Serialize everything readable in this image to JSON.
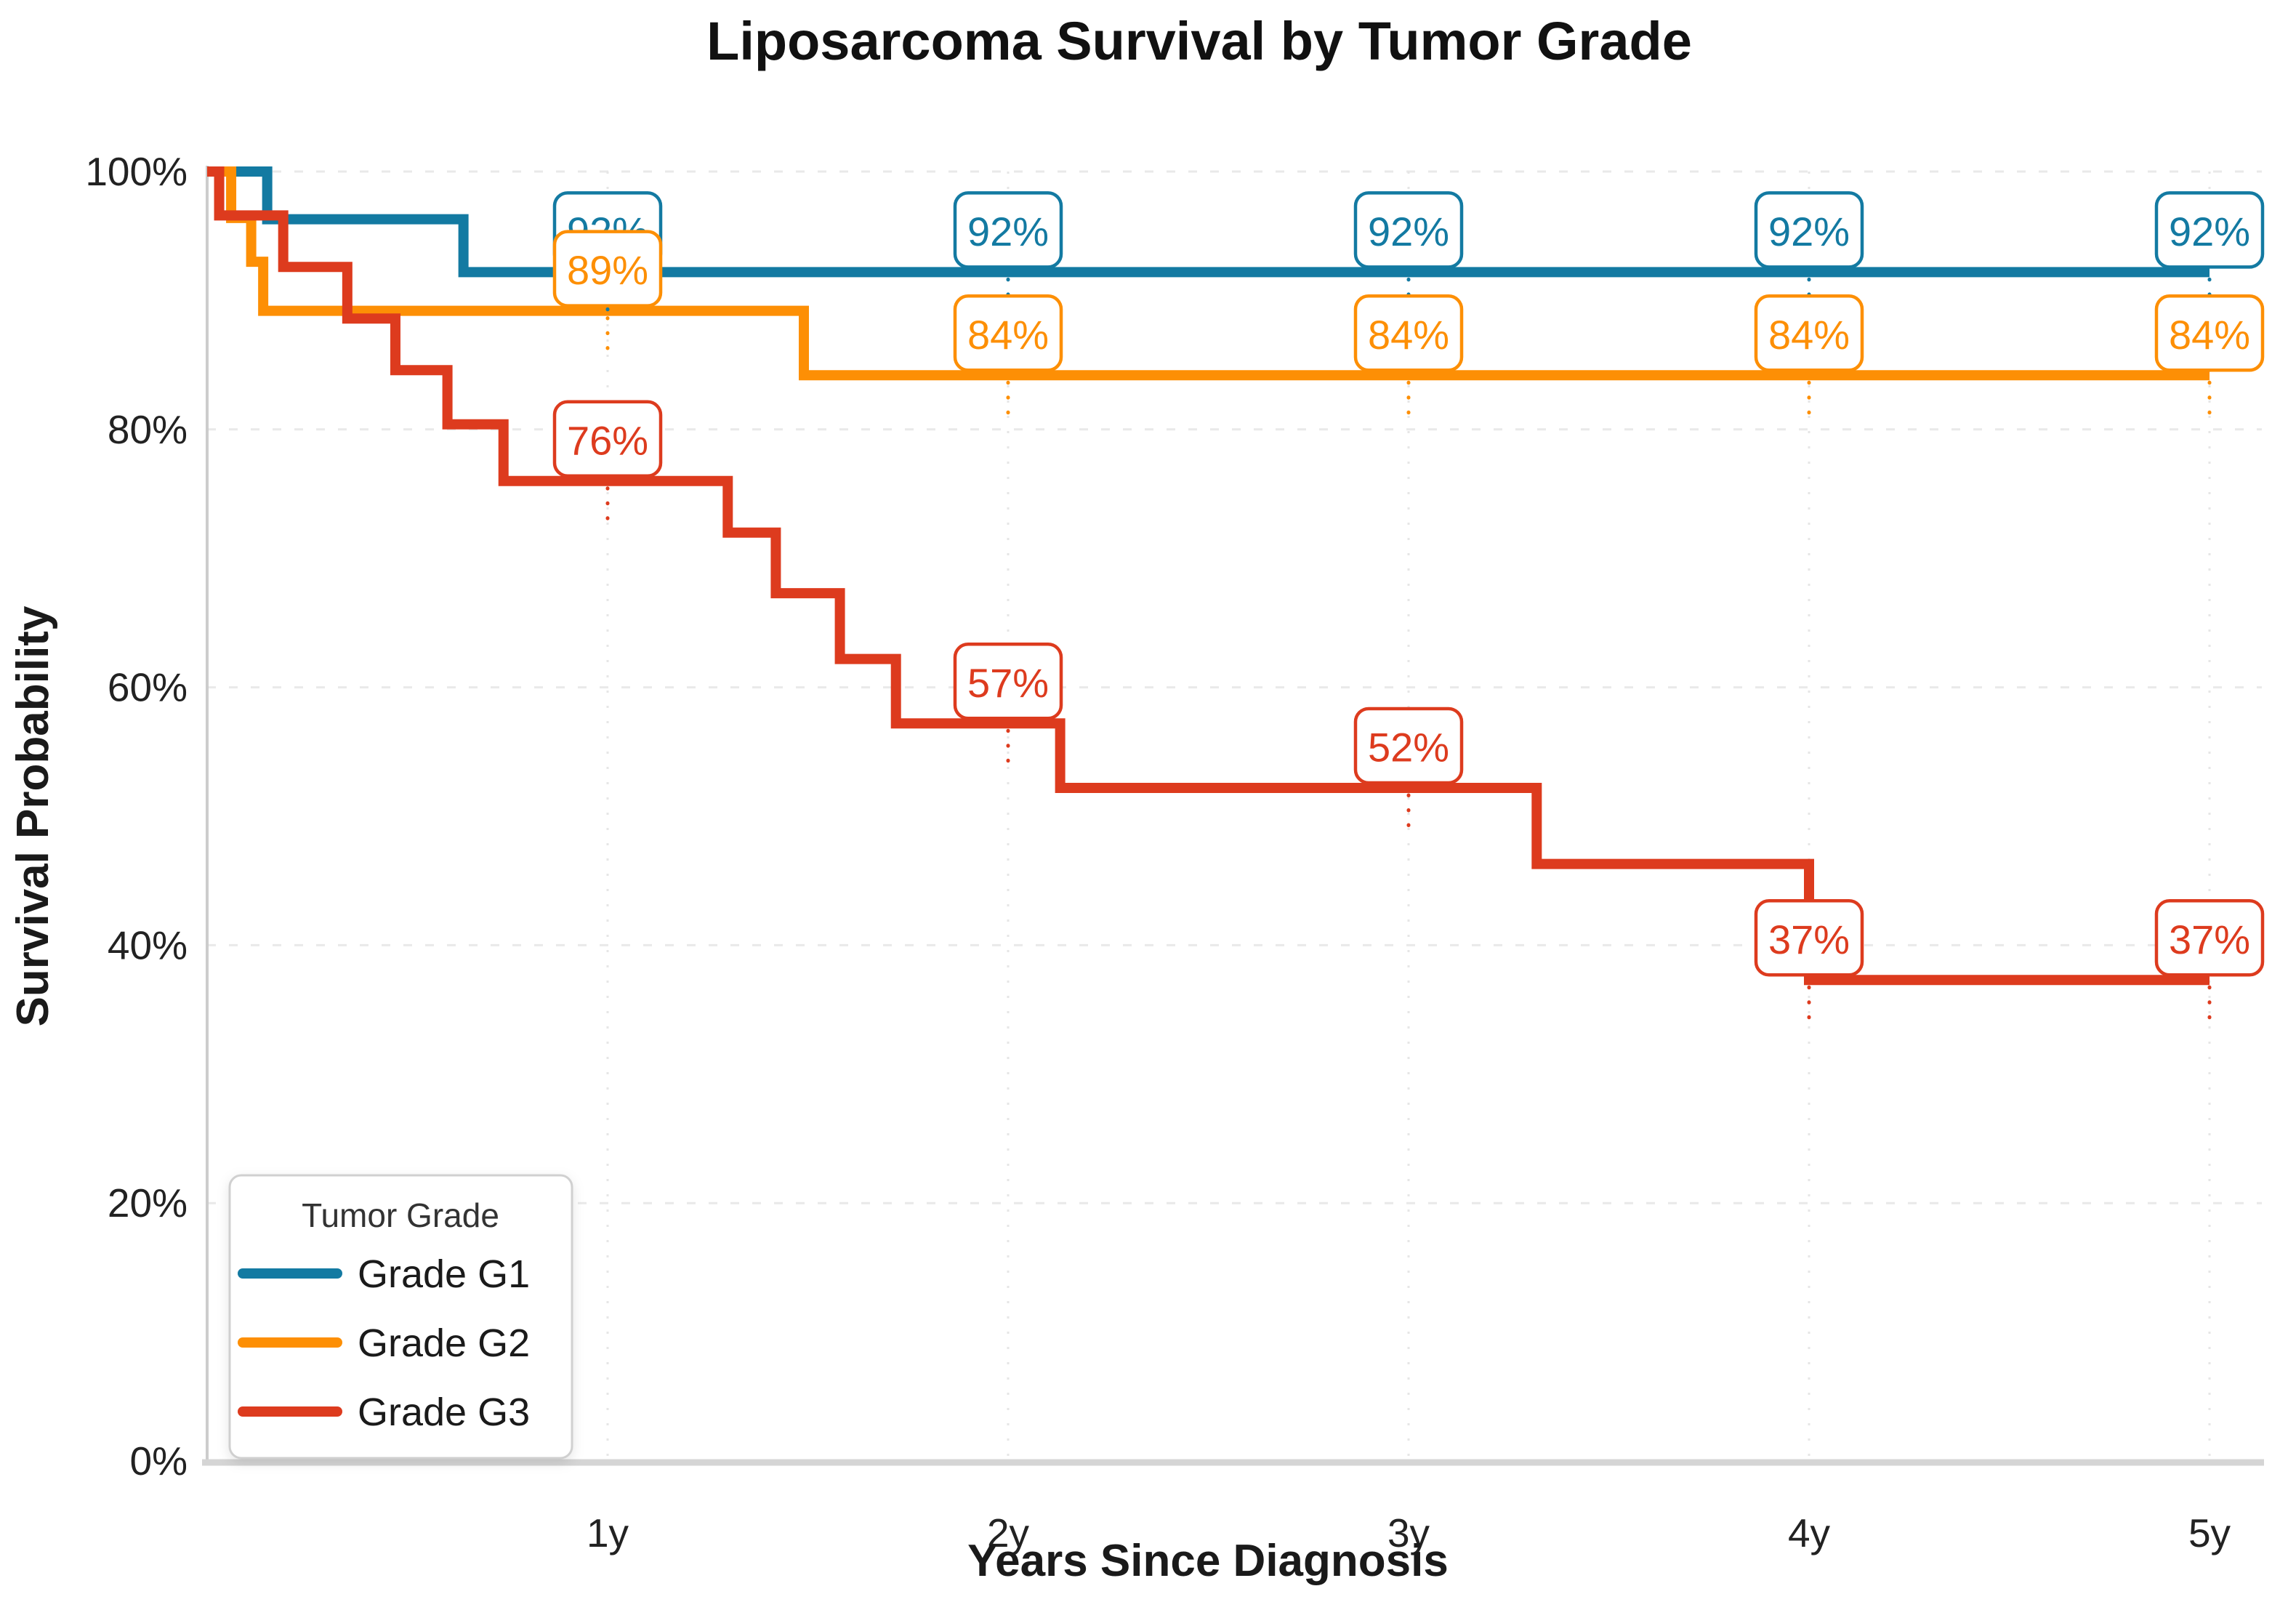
{
  "colors": {
    "background": "#ffffff",
    "grid_horizontal": "#e9e9e9",
    "grid_vertical": "#e6e6e6",
    "axis_line": "#cccccc",
    "tick_text": "#222222",
    "title_text": "#111111",
    "annotation_fill": "#ffffff",
    "legend_border": "#d0d0d0"
  },
  "chart_data": {
    "type": "line",
    "variant": "kaplan_meier_step",
    "title": "Liposarcoma Survival by Tumor Grade",
    "xlabel": "Years Since Diagnosis",
    "ylabel": "Survival Probability",
    "xlim_years": [
      0,
      5
    ],
    "ylim_percent": [
      0,
      100
    ],
    "grid": true,
    "x_ticks": [
      {
        "t": 1,
        "label": "1y"
      },
      {
        "t": 2,
        "label": "2y"
      },
      {
        "t": 3,
        "label": "3y"
      },
      {
        "t": 4,
        "label": "4y"
      },
      {
        "t": 5,
        "label": "5y"
      }
    ],
    "y_ticks": [
      {
        "p": 0,
        "label": "0%"
      },
      {
        "p": 20,
        "label": "20%"
      },
      {
        "p": 40,
        "label": "40%"
      },
      {
        "p": 60,
        "label": "60%"
      },
      {
        "p": 80,
        "label": "80%"
      },
      {
        "p": 100,
        "label": "100%"
      }
    ],
    "legend": {
      "title": "Tumor Grade",
      "position": "lower-left"
    },
    "series": [
      {
        "name": "Grade G1",
        "color": "#137aa2",
        "steps_time_percent": [
          [
            0,
            100
          ],
          [
            0.15,
            96.3
          ],
          [
            0.64,
            92.2
          ]
        ],
        "end_time": 5,
        "annotations": [
          {
            "t": 1,
            "p": 92.2,
            "label": "92%"
          },
          {
            "t": 2,
            "p": 92.2,
            "label": "92%"
          },
          {
            "t": 3,
            "p": 92.2,
            "label": "92%"
          },
          {
            "t": 4,
            "p": 92.2,
            "label": "92%"
          },
          {
            "t": 5,
            "p": 92.2,
            "label": "92%"
          }
        ]
      },
      {
        "name": "Grade G2",
        "color": "#fd8f05",
        "steps_time_percent": [
          [
            0,
            100
          ],
          [
            0.06,
            96.4
          ],
          [
            0.11,
            93.0
          ],
          [
            0.14,
            89.2
          ],
          [
            1.49,
            84.2
          ]
        ],
        "end_time": 5,
        "annotations": [
          {
            "t": 1,
            "p": 89.2,
            "label": "89%"
          },
          {
            "t": 2,
            "p": 84.2,
            "label": "84%"
          },
          {
            "t": 3,
            "p": 84.2,
            "label": "84%"
          },
          {
            "t": 4,
            "p": 84.2,
            "label": "84%"
          },
          {
            "t": 5,
            "p": 84.2,
            "label": "84%"
          }
        ]
      },
      {
        "name": "Grade G3",
        "color": "#dd3b1e",
        "steps_time_percent": [
          [
            0,
            100
          ],
          [
            0.03,
            96.6
          ],
          [
            0.19,
            92.6
          ],
          [
            0.35,
            88.6
          ],
          [
            0.47,
            84.6
          ],
          [
            0.6,
            80.4
          ],
          [
            0.74,
            76.0
          ],
          [
            1.3,
            72.0
          ],
          [
            1.42,
            67.3
          ],
          [
            1.58,
            62.2
          ],
          [
            1.72,
            57.2
          ],
          [
            2.13,
            52.2
          ],
          [
            3.32,
            46.3
          ],
          [
            4.0,
            37.3
          ]
        ],
        "end_time": 5,
        "annotations": [
          {
            "t": 1,
            "p": 76.0,
            "label": "76%"
          },
          {
            "t": 2,
            "p": 57.2,
            "label": "57%"
          },
          {
            "t": 3,
            "p": 52.2,
            "label": "52%"
          },
          {
            "t": 4,
            "p": 37.3,
            "label": "37%"
          },
          {
            "t": 5,
            "p": 37.3,
            "label": "37%"
          }
        ]
      }
    ]
  }
}
